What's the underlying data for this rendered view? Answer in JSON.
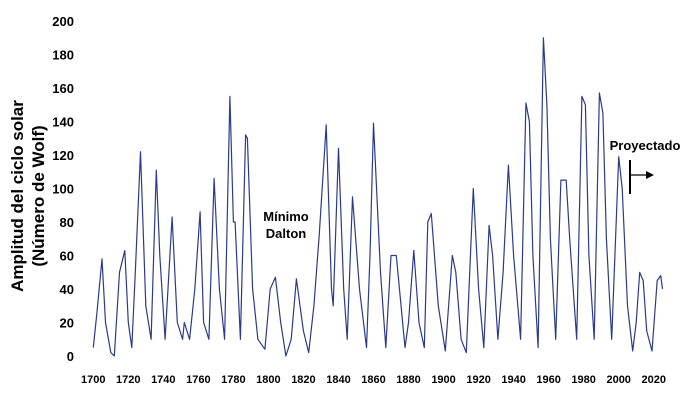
{
  "chart_data": {
    "type": "line",
    "ylabel_line1": "Amplitud del ciclo solar",
    "ylabel_line2": "(Número de Wolf)",
    "xlabel": "",
    "title": "",
    "xlim": [
      1697,
      2027
    ],
    "ylim": [
      0,
      200
    ],
    "x_ticks": [
      1700,
      1720,
      1740,
      1760,
      1780,
      1800,
      1820,
      1840,
      1860,
      1880,
      1900,
      1920,
      1940,
      1960,
      1980,
      2000,
      2020
    ],
    "y_ticks": [
      0,
      20,
      40,
      60,
      80,
      100,
      120,
      140,
      160,
      180,
      200
    ],
    "grid": false,
    "line_color": "#2b3a8c",
    "series": [
      {
        "name": "",
        "x": [
          1700,
          1702,
          1705,
          1707,
          1710,
          1712,
          1715,
          1718,
          1720,
          1722,
          1724,
          1727,
          1730,
          1733,
          1736,
          1738,
          1741,
          1745,
          1748,
          1751,
          1752,
          1755,
          1758,
          1761,
          1763,
          1766,
          1769,
          1772,
          1775,
          1778,
          1780,
          1781,
          1784,
          1787,
          1788,
          1791,
          1794,
          1798,
          1801,
          1804,
          1807,
          1810,
          1813,
          1816,
          1820,
          1823,
          1826,
          1829,
          1833,
          1836,
          1837,
          1840,
          1843,
          1845,
          1848,
          1852,
          1856,
          1858,
          1860,
          1864,
          1867,
          1870,
          1873,
          1878,
          1880,
          1883,
          1886,
          1889,
          1891,
          1893,
          1897,
          1901,
          1905,
          1907,
          1910,
          1913,
          1917,
          1920,
          1923,
          1926,
          1928,
          1931,
          1934,
          1937,
          1940,
          1944,
          1947,
          1949,
          1951,
          1954,
          1957,
          1959,
          1961,
          1964,
          1967,
          1970,
          1972,
          1976,
          1979,
          1981,
          1983,
          1986,
          1989,
          1991,
          1993,
          1996,
          2000,
          2002,
          2005,
          2008,
          2010,
          2012,
          2014,
          2016,
          2019,
          2022,
          2024,
          2025
        ],
        "y": [
          5,
          25,
          58,
          20,
          2,
          0,
          50,
          63,
          20,
          5,
          50,
          122,
          30,
          10,
          111,
          60,
          10,
          83,
          20,
          10,
          20,
          10,
          40,
          86,
          20,
          10,
          106,
          40,
          10,
          155,
          80,
          80,
          10,
          132,
          130,
          40,
          10,
          4,
          40,
          47,
          20,
          0,
          10,
          46,
          15,
          2,
          30,
          72,
          138,
          40,
          30,
          124,
          40,
          10,
          95,
          40,
          5,
          60,
          139,
          50,
          5,
          60,
          60,
          5,
          20,
          63,
          20,
          5,
          80,
          85,
          30,
          3,
          60,
          50,
          10,
          2,
          100,
          40,
          5,
          78,
          60,
          10,
          50,
          114,
          60,
          10,
          151,
          140,
          60,
          5,
          190,
          150,
          70,
          10,
          105,
          105,
          70,
          10,
          155,
          150,
          60,
          10,
          157,
          145,
          70,
          10,
          119,
          100,
          30,
          3,
          20,
          50,
          45,
          15,
          3,
          45,
          48,
          40
        ]
      }
    ],
    "annotations": {
      "dalton_line1": "Mínimo",
      "dalton_line2": "Dalton",
      "projected": "Proyectado"
    }
  }
}
